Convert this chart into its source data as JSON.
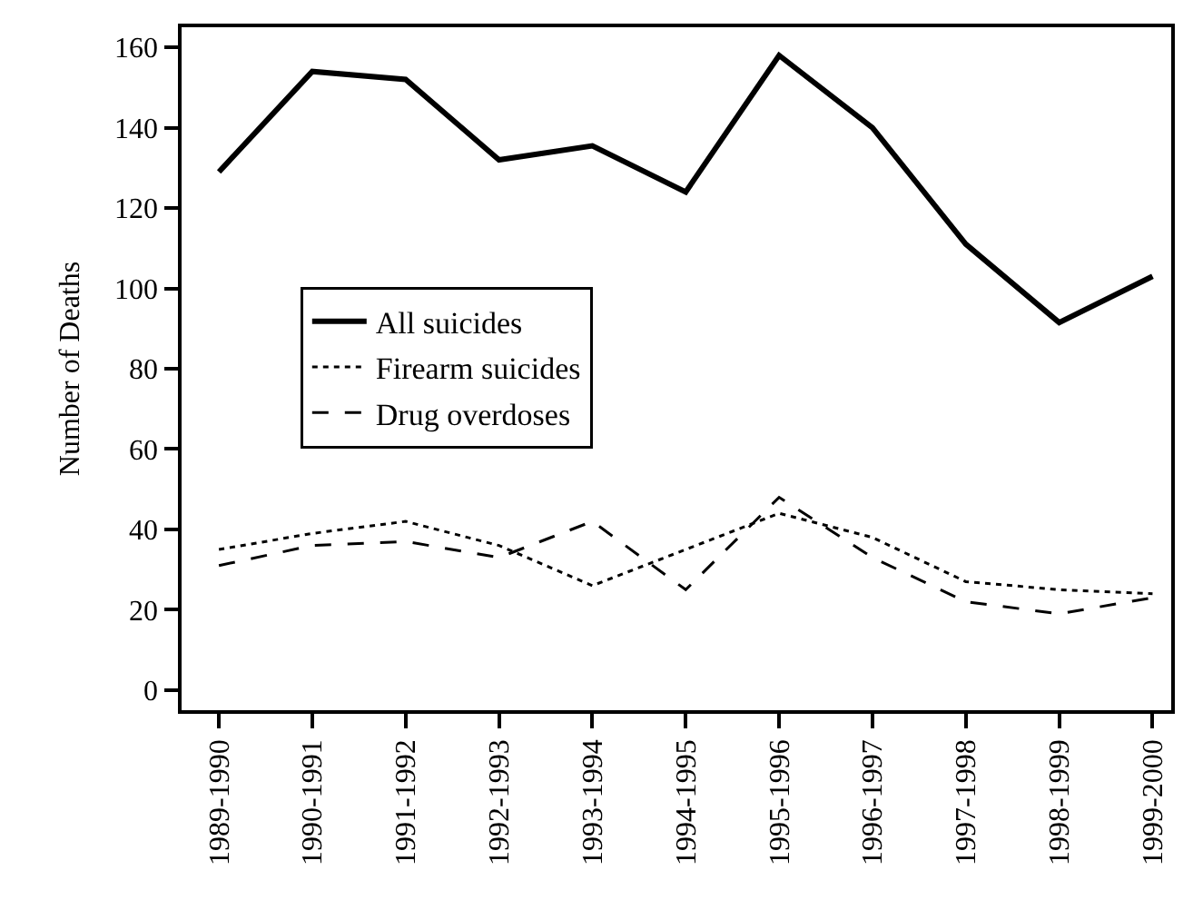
{
  "chart_data": {
    "type": "line",
    "ylabel": "Number of Deaths",
    "categories": [
      "1989-1990",
      "1990-1991",
      "1991-1992",
      "1992-1993",
      "1993-1994",
      "1994-1995",
      "1995-1996",
      "1996-1997",
      "1997-1998",
      "1998-1999",
      "1999-2000"
    ],
    "series": [
      {
        "name": "All suicides",
        "color": "#000000",
        "line_style": "solid",
        "values": [
          129,
          154,
          152,
          132,
          135.5,
          124,
          158,
          140,
          111,
          91.5,
          103
        ]
      },
      {
        "name": "Firearm suicides",
        "color": "#000000",
        "line_style": "dotted",
        "values": [
          35,
          39,
          42,
          36,
          26,
          35,
          44,
          38,
          27,
          25,
          24
        ]
      },
      {
        "name": "Drug overdoses",
        "color": "#000000",
        "line_style": "dashed",
        "values": [
          31,
          36,
          37,
          33,
          42,
          25,
          48,
          33,
          22,
          19,
          23
        ]
      }
    ],
    "ylim": [
      -5,
      165
    ],
    "yticks": [
      0,
      20,
      40,
      60,
      80,
      100,
      120,
      140,
      160
    ],
    "legend": "left",
    "marker": "none"
  }
}
